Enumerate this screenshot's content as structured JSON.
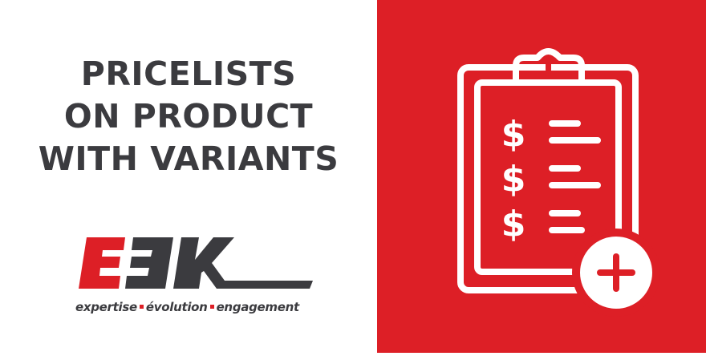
{
  "headline": {
    "lines": [
      "PRICELISTS",
      "ON PRODUCT",
      "WITH VARIANTS"
    ]
  },
  "logo": {
    "wordmark": "EEK",
    "tagline": {
      "word1": "expertise",
      "word2": "évolution",
      "word3": "engagement"
    }
  },
  "illustration": {
    "icon": "clipboard-pricelist-add-icon",
    "symbols": [
      "$",
      "$",
      "$"
    ],
    "badge_icon": "plus-icon"
  },
  "colors": {
    "accent_red": "#dd1f26",
    "text_dark": "#3b3b3f",
    "background": "#ffffff",
    "icon_white": "#ffffff"
  }
}
